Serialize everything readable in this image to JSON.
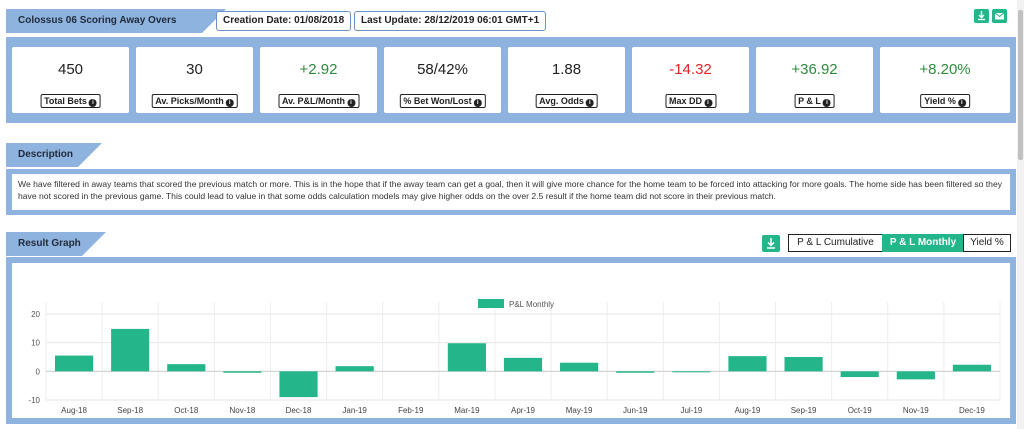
{
  "header": {
    "title": "Colossus 06 Scoring Away Overs",
    "creation_date": "Creation Date: 01/08/2018",
    "last_update": "Last Update: 28/12/2019 06:01 GMT+1"
  },
  "icons": {
    "download": "download-icon",
    "email": "email-icon",
    "info": "info-icon"
  },
  "colors": {
    "accent": "#25b58a",
    "panel": "#8fb3df",
    "positive": "#2e8b3e",
    "negative": "#e0262a"
  },
  "stats": [
    {
      "value": "450",
      "label": "Total Bets",
      "tone": "neutral"
    },
    {
      "value": "30",
      "label": "Av. Picks/Month",
      "tone": "neutral"
    },
    {
      "value": "+2.92",
      "label": "Av. P&L/Month",
      "tone": "positive"
    },
    {
      "value": "58/42%",
      "label": "% Bet Won/Lost",
      "tone": "neutral"
    },
    {
      "value": "1.88",
      "label": "Avg. Odds",
      "tone": "neutral"
    },
    {
      "value": "-14.32",
      "label": "Max DD",
      "tone": "negative"
    },
    {
      "value": "+36.92",
      "label": "P & L",
      "tone": "positive"
    },
    {
      "value": "+8.20%",
      "label": "Yield %",
      "tone": "positive"
    }
  ],
  "description": {
    "title": "Description",
    "text": "We have filtered in away teams that scored the previous match or more. This is in the hope that if the away team can get a goal, then it will give more chance for the home team to be forced into attacking for more goals. The home side has been filtered so they have not scored in the previous game. This could lead to value in that some odds calculation models may give higher odds on the over 2.5 result if the home team did not score in their previous match."
  },
  "graph": {
    "title": "Result Graph",
    "buttons": [
      {
        "label": "P & L Cumulative",
        "active": false
      },
      {
        "label": "P & L Monthly",
        "active": true
      },
      {
        "label": "Yield %",
        "active": false
      }
    ]
  },
  "chart_data": {
    "type": "bar",
    "series": [
      {
        "name": "P&L Monthly",
        "values": [
          5.5,
          14.8,
          2.5,
          -0.5,
          -9.0,
          1.8,
          0.0,
          9.8,
          4.7,
          3.0,
          -0.5,
          -0.3,
          5.3,
          5.0,
          -2.0,
          -2.8,
          2.3
        ]
      }
    ],
    "categories": [
      "Aug-18",
      "Sep-18",
      "Oct-18",
      "Nov-18",
      "Dec-18",
      "Jan-19",
      "Feb-19",
      "Mar-19",
      "Apr-19",
      "May-19",
      "Jun-19",
      "Jul-19",
      "Aug-19",
      "Sep-19",
      "Oct-19",
      "Nov-19",
      "Dec-19"
    ],
    "yticks": [
      "20",
      "10",
      "0",
      "-10"
    ],
    "ylim": [
      -10,
      20
    ],
    "legend": "top-center",
    "grid": true
  }
}
